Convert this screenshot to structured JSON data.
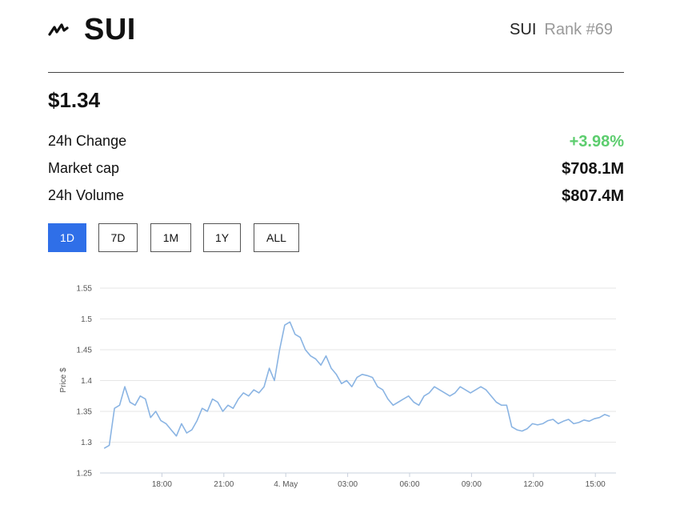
{
  "header": {
    "coin_name": "SUI",
    "symbol": "SUI",
    "rank": "Rank #69",
    "logo_icon": "sui-logo-icon"
  },
  "price": "$1.34",
  "stats": [
    {
      "label": "24h Change",
      "value": "+3.98%",
      "status": "positive"
    },
    {
      "label": "Market cap",
      "value": "$708.1M"
    },
    {
      "label": "24h Volume",
      "value": "$807.4M"
    }
  ],
  "ranges": [
    {
      "label": "1D",
      "active": true
    },
    {
      "label": "7D",
      "active": false
    },
    {
      "label": "1M",
      "active": false
    },
    {
      "label": "1Y",
      "active": false
    },
    {
      "label": "ALL",
      "active": false
    }
  ],
  "colors": {
    "accent": "#2f6fe8",
    "positive": "#5ccd6e",
    "line": "#8ab4e3",
    "grid": "#e6e6e6"
  },
  "chart_data": {
    "type": "line",
    "ylabel": "Price $",
    "xlabel": "",
    "ylim": [
      1.25,
      1.55
    ],
    "y_ticks": [
      "1.55",
      "1.5",
      "1.45",
      "1.4",
      "1.35",
      "1.3",
      "1.25"
    ],
    "x_ticks": [
      "18:00",
      "21:00",
      "4. May",
      "03:00",
      "06:00",
      "09:00",
      "12:00",
      "15:00"
    ],
    "grid": true,
    "legend": "none",
    "series": [
      {
        "x": [
          15.2,
          15.45,
          15.7,
          15.95,
          16.2,
          16.45,
          16.7,
          16.95,
          17.2,
          17.45,
          17.7,
          17.95,
          18.2,
          18.45,
          18.7,
          18.95,
          19.2,
          19.45,
          19.7,
          19.95,
          20.2,
          20.45,
          20.7,
          20.95,
          21.2,
          21.45,
          21.7,
          21.95,
          22.2,
          22.45,
          22.7,
          22.95,
          23.2,
          23.45,
          23.7,
          23.95,
          24.2,
          24.45,
          24.7,
          24.95,
          25.2,
          25.45,
          25.7,
          25.95,
          26.2,
          26.45,
          26.7,
          26.95,
          27.2,
          27.45,
          27.7,
          27.95,
          28.2,
          28.45,
          28.7,
          28.95,
          29.2,
          29.45,
          29.7,
          29.95,
          30.2,
          30.45,
          30.7,
          30.95,
          31.2,
          31.45,
          31.7,
          31.95,
          32.2,
          32.45,
          32.7,
          32.95,
          33.2,
          33.45,
          33.7,
          33.95,
          34.2,
          34.45,
          34.7,
          34.95,
          35.2,
          35.45,
          35.7,
          35.95,
          36.2,
          36.45,
          36.7,
          36.95,
          37.2,
          37.45,
          37.7,
          37.95,
          38.2,
          38.45,
          38.7,
          38.95,
          39.2,
          39.45,
          39.7
        ],
        "y": [
          1.29,
          1.295,
          1.355,
          1.36,
          1.39,
          1.365,
          1.36,
          1.375,
          1.37,
          1.34,
          1.35,
          1.335,
          1.33,
          1.32,
          1.31,
          1.33,
          1.315,
          1.32,
          1.335,
          1.355,
          1.35,
          1.37,
          1.365,
          1.35,
          1.36,
          1.355,
          1.37,
          1.38,
          1.375,
          1.385,
          1.38,
          1.39,
          1.42,
          1.4,
          1.45,
          1.49,
          1.495,
          1.475,
          1.47,
          1.45,
          1.44,
          1.435,
          1.425,
          1.44,
          1.42,
          1.41,
          1.395,
          1.4,
          1.39,
          1.405,
          1.41,
          1.408,
          1.405,
          1.39,
          1.385,
          1.37,
          1.36,
          1.365,
          1.37,
          1.375,
          1.365,
          1.36,
          1.375,
          1.38,
          1.39,
          1.385,
          1.38,
          1.375,
          1.38,
          1.39,
          1.385,
          1.38,
          1.385,
          1.39,
          1.385,
          1.375,
          1.365,
          1.36,
          1.36,
          1.325,
          1.32,
          1.318,
          1.322,
          1.33,
          1.328,
          1.33,
          1.335,
          1.337,
          1.33,
          1.334,
          1.337,
          1.33,
          1.332,
          1.336,
          1.334,
          1.338,
          1.34,
          1.345,
          1.342
        ]
      }
    ]
  }
}
